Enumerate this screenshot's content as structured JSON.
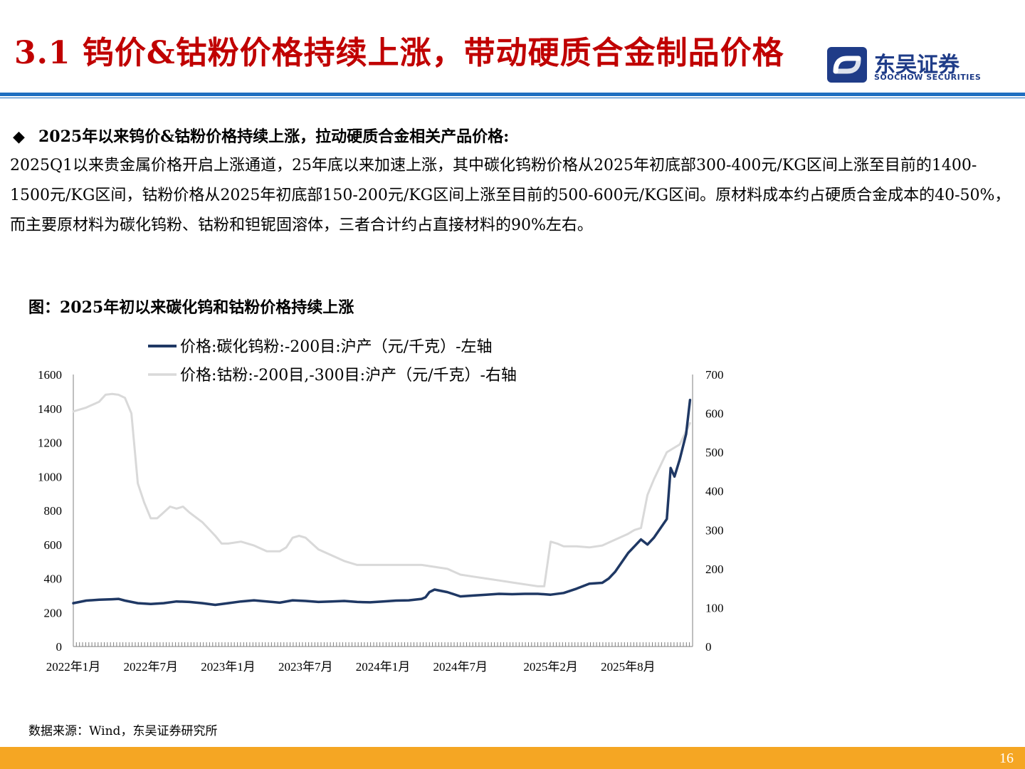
{
  "header": {
    "title": "3.1 钨价&钴粉价格持续上涨，带动硬质合金制品价格",
    "logo_cn": "东吴证券",
    "logo_en": "SOOCHOW SECURITIES"
  },
  "content": {
    "bullet_symbol": "◆",
    "heading": "2025年以来钨价&钴粉价格持续上涨，拉动硬质合金相关产品价格:",
    "paragraph": "2025Q1以来贵金属价格开启上涨通道，25年底以来加速上涨，其中碳化钨粉价格从2025年初底部300-400元/KG区间上涨至目前的1400-1500元/KG区间，钴粉价格从2025年初底部150-200元/KG区间上涨至目前的500-600元/KG区间。原材料成本约占硬质合金成本的40-50%，而主要原材料为碳化钨粉、钴粉和钽铌固溶体，三者合计约占直接材料的90%左右。",
    "figure_title": "图：2025年初以来碳化钨和钴粉价格持续上涨",
    "source": "数据来源：Wind，东吴证券研究所",
    "page_number": "16"
  },
  "colors": {
    "title_red": "#C00000",
    "brand_blue": "#1F6FC0",
    "series_tungsten": "#1F3864",
    "series_cobalt": "#D9D9D9",
    "footer_orange": "#F5A623"
  },
  "chart_data": {
    "type": "line",
    "title": "",
    "x_tick_labels": [
      "2022年1月",
      "2022年7月",
      "2023年1月",
      "2023年7月",
      "2024年1月",
      "2024年7月",
      "2025年2月",
      "2025年8月"
    ],
    "x_tick_months": [
      0,
      6,
      12,
      18,
      24,
      30,
      37,
      43
    ],
    "y_left": {
      "min": 0,
      "max": 1600,
      "ticks": [
        "0",
        "200",
        "400",
        "600",
        "800",
        "1000",
        "1200",
        "1400",
        "1600"
      ]
    },
    "y_right": {
      "min": 0,
      "max": 700,
      "ticks": [
        "0",
        "100",
        "200",
        "300",
        "400",
        "500",
        "600",
        "700"
      ]
    },
    "legend": "top-left",
    "grid": false,
    "series": [
      {
        "name": "价格:碳化钨粉:-200目:沪产（元/千克）-左轴",
        "axis": "left",
        "color": "#1F3864",
        "months": [
          0,
          1,
          2,
          3,
          3.5,
          4,
          5,
          6,
          7,
          8,
          9,
          10,
          11,
          12,
          13,
          14,
          15,
          16,
          17,
          18,
          19,
          20,
          21,
          22,
          23,
          24,
          25,
          26,
          27,
          27.3,
          27.6,
          28,
          29,
          30,
          31,
          32,
          33,
          34,
          35,
          36,
          37,
          38,
          39,
          40,
          41,
          41.5,
          42,
          43,
          44,
          44.5,
          45,
          46,
          46.3,
          46.6,
          47,
          47.5,
          47.8
        ],
        "values": [
          255,
          270,
          275,
          278,
          280,
          270,
          255,
          250,
          255,
          265,
          262,
          255,
          245,
          255,
          265,
          272,
          265,
          258,
          272,
          268,
          262,
          265,
          268,
          262,
          260,
          265,
          270,
          272,
          280,
          290,
          320,
          335,
          320,
          295,
          300,
          305,
          310,
          308,
          310,
          310,
          305,
          315,
          340,
          370,
          375,
          400,
          440,
          550,
          630,
          600,
          640,
          750,
          1050,
          1000,
          1100,
          1250,
          1450
        ]
      },
      {
        "name": "价格:钴粉:-200目,-300目:沪产（元/千克）-右轴",
        "axis": "right",
        "color": "#D9D9D9",
        "months": [
          0,
          1,
          2,
          2.5,
          3,
          3.5,
          4,
          4.5,
          5,
          5.5,
          6,
          6.5,
          7,
          7.5,
          8,
          8.5,
          9,
          10,
          11,
          11.5,
          12,
          13,
          14,
          15,
          16,
          16.5,
          17,
          17.5,
          18,
          18.5,
          19,
          20,
          21,
          22,
          23,
          24,
          25,
          26,
          27,
          28,
          29,
          30,
          31,
          32,
          33,
          34,
          35,
          36,
          36.5,
          37,
          37.5,
          38,
          39,
          40,
          41,
          42,
          43,
          43.5,
          44,
          44.5,
          45,
          46,
          47,
          47.8
        ],
        "values": [
          605,
          615,
          630,
          648,
          650,
          648,
          640,
          600,
          420,
          370,
          330,
          330,
          345,
          360,
          355,
          360,
          345,
          320,
          285,
          265,
          265,
          270,
          260,
          245,
          245,
          255,
          280,
          285,
          280,
          265,
          250,
          235,
          220,
          210,
          210,
          210,
          210,
          210,
          210,
          205,
          200,
          185,
          180,
          175,
          170,
          165,
          160,
          155,
          155,
          270,
          265,
          258,
          258,
          255,
          260,
          275,
          290,
          300,
          305,
          390,
          430,
          500,
          520,
          575
        ]
      }
    ]
  }
}
